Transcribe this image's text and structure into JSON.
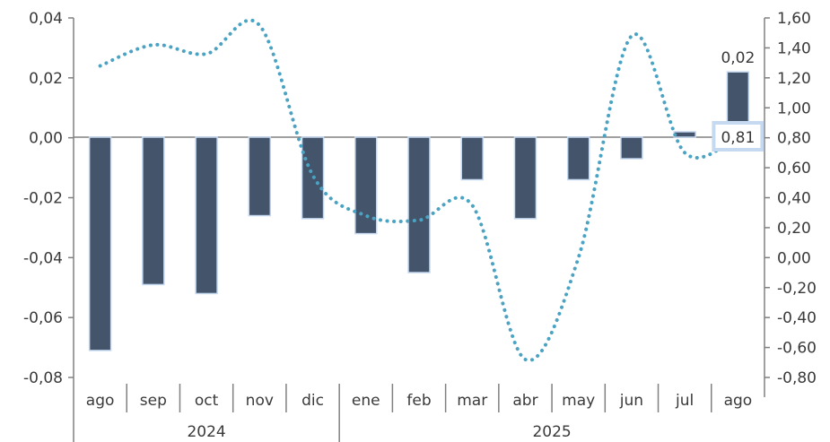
{
  "chart_data": {
    "type": "bar",
    "categories": [
      "ago",
      "sep",
      "oct",
      "nov",
      "dic",
      "ene",
      "feb",
      "mar",
      "abr",
      "may",
      "jun",
      "jul",
      "ago"
    ],
    "groups": [
      {
        "label": "2024",
        "start": 0,
        "end": 4
      },
      {
        "label": "2025",
        "start": 5,
        "end": 12
      }
    ],
    "series": [
      {
        "type": "bar",
        "axis": "left",
        "color": "#44546a",
        "values": [
          -0.071,
          -0.049,
          -0.052,
          -0.026,
          -0.027,
          -0.032,
          -0.045,
          -0.014,
          -0.027,
          -0.014,
          -0.007,
          0.002,
          0.022
        ]
      },
      {
        "type": "line",
        "style": "dotted",
        "axis": "right",
        "color": "#4ba3c3",
        "values": [
          1.28,
          1.42,
          1.36,
          1.55,
          0.55,
          0.28,
          0.25,
          0.35,
          -0.68,
          0.0,
          1.48,
          0.7,
          0.81
        ]
      }
    ],
    "y_left": {
      "min": -0.08,
      "max": 0.04,
      "ticks": [
        "0,04",
        "0,02",
        "0,00",
        "-0,02",
        "-0,04",
        "-0,06",
        "-0,08"
      ]
    },
    "y_right": {
      "min": -0.8,
      "max": 1.6,
      "ticks": [
        "1,60",
        "1,40",
        "1,20",
        "1,00",
        "0,80",
        "0,60",
        "0,40",
        "0,20",
        "0,00",
        "-0,20",
        "-0,40",
        "-0,60",
        "-0,80"
      ]
    },
    "annotations": [
      {
        "series": 0,
        "index": 12,
        "text": "0,02"
      },
      {
        "series": 1,
        "index": 12,
        "text": "0,81",
        "boxed": true,
        "box_color": "#c5d9f1"
      }
    ],
    "grid": false,
    "legend": "none"
  }
}
